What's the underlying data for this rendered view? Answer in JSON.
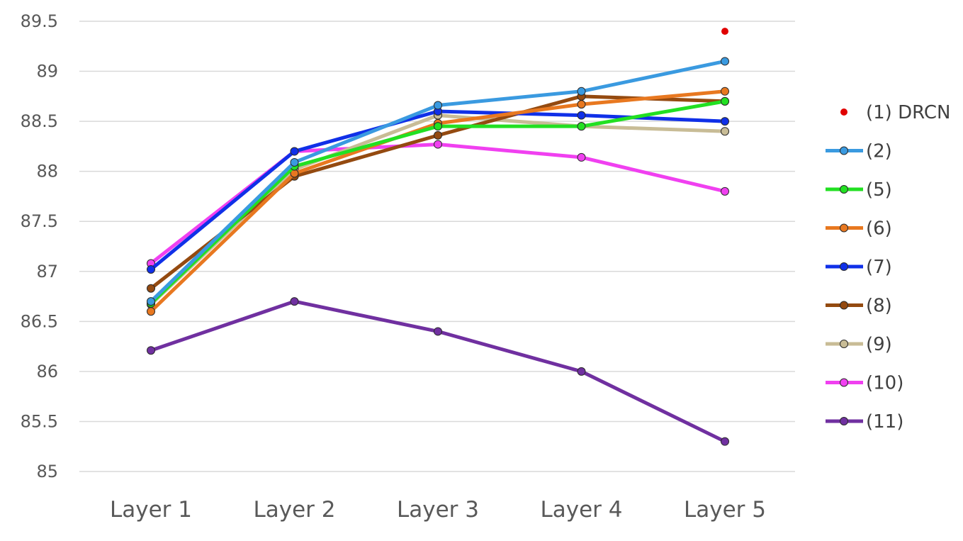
{
  "chart_data": {
    "type": "line",
    "title": "",
    "xlabel": "",
    "ylabel": "",
    "categories": [
      "Layer 1",
      "Layer 2",
      "Layer 3",
      "Layer 4",
      "Layer 5"
    ],
    "ylim": [
      85,
      89.5
    ],
    "yticks": [
      "85",
      "85.5",
      "86",
      "86.5",
      "87",
      "87.5",
      "88",
      "88.5",
      "89",
      "89.5"
    ],
    "grid": true,
    "legend_position": "right",
    "series": [
      {
        "name": "(1) DRCN",
        "color": "#e00000",
        "marker_only": true,
        "values": [
          null,
          null,
          null,
          null,
          89.4
        ]
      },
      {
        "name": "(2)",
        "color": "#3a9ae0",
        "values": [
          86.7,
          88.09,
          88.66,
          88.8,
          89.1
        ]
      },
      {
        "name": "(5)",
        "color": "#22e022",
        "values": [
          86.68,
          88.05,
          88.45,
          88.45,
          88.7
        ]
      },
      {
        "name": "(6)",
        "color": "#e87820",
        "values": [
          86.6,
          87.98,
          88.48,
          88.67,
          88.8
        ]
      },
      {
        "name": "(7)",
        "color": "#1030e8",
        "values": [
          87.02,
          88.2,
          88.6,
          88.56,
          88.5
        ]
      },
      {
        "name": "(8)",
        "color": "#944a10",
        "values": [
          86.83,
          87.95,
          88.36,
          88.75,
          88.7
        ]
      },
      {
        "name": "(9)",
        "color": "#c8bc96",
        "values": [
          86.67,
          88.02,
          88.56,
          88.45,
          88.4
        ]
      },
      {
        "name": "(10)",
        "color": "#f040f0",
        "values": [
          87.08,
          88.2,
          88.27,
          88.14,
          87.8
        ]
      },
      {
        "name": "(11)",
        "color": "#7030a0",
        "values": [
          86.21,
          86.7,
          86.4,
          86.0,
          85.3
        ]
      }
    ]
  }
}
